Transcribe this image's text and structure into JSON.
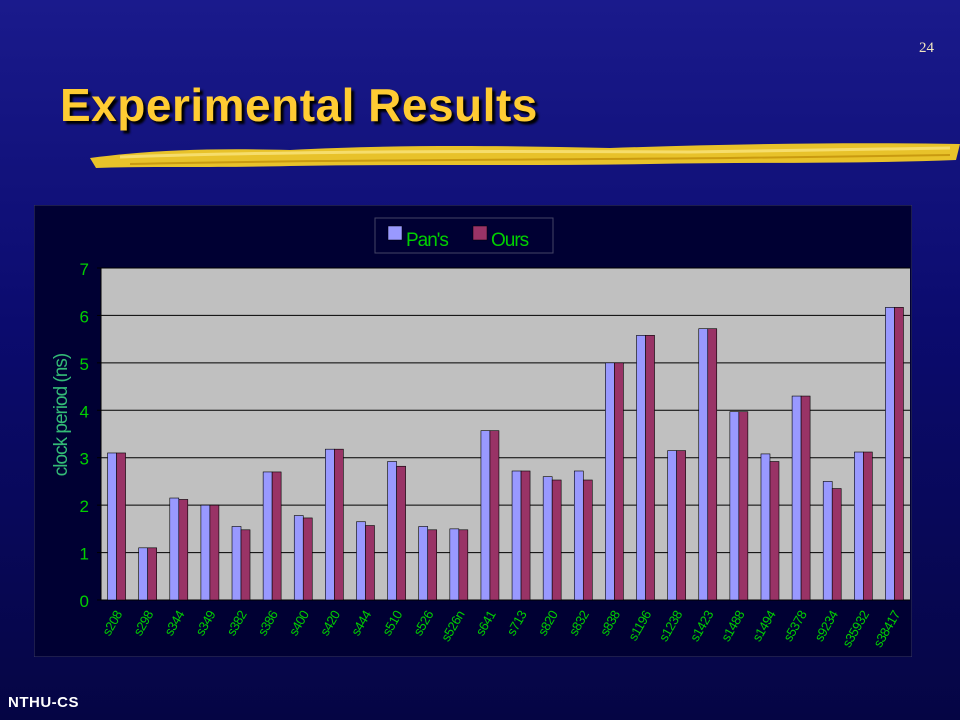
{
  "slide": {
    "number": "24",
    "title": "Experimental Results",
    "footer": "NTHU-CS"
  },
  "colors": {
    "title": "#ffcc33",
    "pans": "#9999ff",
    "ours": "#993366",
    "plot_area": "#c0c0c0",
    "tick_text": "#00d000",
    "axis_label": "#33bb77"
  },
  "chart_data": {
    "type": "bar",
    "ylabel": "clock period (ns)",
    "ylim": [
      0,
      7
    ],
    "yticks": [
      "0",
      "1",
      "2",
      "3",
      "4",
      "5",
      "6",
      "7"
    ],
    "legend_position": "top-center",
    "grid": true,
    "categories": [
      "s208",
      "s298",
      "s344",
      "s349",
      "s382",
      "s386",
      "s400",
      "s420",
      "s444",
      "s510",
      "s526",
      "s526n",
      "s641",
      "s713",
      "s820",
      "s832",
      "s838",
      "s1196",
      "s1238",
      "s1423",
      "s1488",
      "s1494",
      "s5378",
      "s9234",
      "s35932",
      "s38417"
    ],
    "series": [
      {
        "name": "Pan's",
        "values": [
          3.1,
          1.1,
          2.15,
          2.0,
          1.55,
          2.7,
          1.78,
          3.18,
          1.65,
          2.92,
          1.55,
          1.5,
          3.57,
          2.72,
          2.6,
          2.72,
          5.0,
          5.58,
          3.15,
          5.72,
          3.97,
          3.08,
          4.3,
          2.5,
          3.12,
          6.17
        ]
      },
      {
        "name": "Ours",
        "values": [
          3.1,
          1.1,
          2.12,
          2.0,
          1.48,
          2.7,
          1.73,
          3.18,
          1.57,
          2.82,
          1.48,
          1.48,
          3.57,
          2.72,
          2.53,
          2.53,
          5.0,
          5.58,
          3.15,
          5.72,
          3.97,
          2.92,
          4.3,
          2.35,
          3.12,
          6.17
        ]
      }
    ]
  }
}
